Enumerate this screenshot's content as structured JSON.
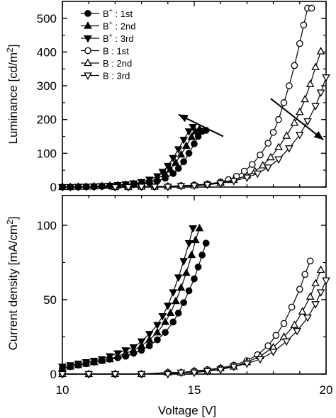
{
  "chart_data": [
    {
      "type": "line",
      "panel": "top",
      "ylabel": "Luminance [cd/m²]",
      "ylabel_parts": {
        "base": "Luminance [cd/m",
        "sup": "2",
        "close": "]"
      },
      "xlim": [
        10,
        20
      ],
      "ylim": [
        0,
        550
      ],
      "xticks": [
        10,
        15,
        20
      ],
      "yticks": [
        0,
        100,
        200,
        300,
        400,
        500
      ],
      "legend": {
        "placement": "top-left",
        "entries": [
          {
            "label": "B⁺ : 1st",
            "parts": [
              "B",
              "+",
              " : 1st"
            ],
            "marker": "circle",
            "filled": true
          },
          {
            "label": "B⁺ : 2nd",
            "parts": [
              "B",
              "+",
              " : 2nd"
            ],
            "marker": "triangle-up",
            "filled": true
          },
          {
            "label": "B⁺ : 3rd",
            "parts": [
              "B",
              "+",
              " : 3rd"
            ],
            "marker": "triangle-down",
            "filled": true
          },
          {
            "label": "B  : 1st",
            "parts": [
              "B",
              "",
              "  : 1st"
            ],
            "marker": "circle",
            "filled": false
          },
          {
            "label": "B  : 2nd",
            "parts": [
              "B",
              "",
              "  : 2nd"
            ],
            "marker": "triangle-up",
            "filled": false
          },
          {
            "label": "B  : 3rd",
            "parts": [
              "B",
              "",
              "  : 3rd"
            ],
            "marker": "triangle-down",
            "filled": false
          }
        ]
      },
      "arrows": [
        {
          "from": [
            16.1,
            150
          ],
          "to": [
            14.4,
            215
          ]
        },
        {
          "from": [
            17.9,
            262
          ],
          "to": [
            19.9,
            140
          ]
        }
      ],
      "series": [
        {
          "name": "B⁺ : 1st",
          "marker": "circle",
          "filled": true,
          "x": [
            10.0,
            10.3,
            10.6,
            10.9,
            11.2,
            11.5,
            11.8,
            12.1,
            12.4,
            12.7,
            13.0,
            13.3,
            13.6,
            13.9,
            14.2,
            14.4,
            14.6,
            14.8,
            15.0,
            15.15,
            15.3,
            15.45
          ],
          "y": [
            0,
            0,
            0,
            1,
            1,
            2,
            3,
            4,
            5,
            7,
            9,
            13,
            18,
            26,
            40,
            55,
            75,
            100,
            128,
            150,
            165,
            168
          ]
        },
        {
          "name": "B⁺ : 2nd",
          "marker": "triangle-up",
          "filled": true,
          "x": [
            10.0,
            10.3,
            10.6,
            10.9,
            11.2,
            11.5,
            11.8,
            12.1,
            12.4,
            12.7,
            13.0,
            13.3,
            13.6,
            13.9,
            14.1,
            14.3,
            14.5,
            14.7,
            14.9,
            15.05,
            15.2
          ],
          "y": [
            0,
            0,
            1,
            1,
            2,
            3,
            4,
            5,
            7,
            9,
            12,
            17,
            25,
            38,
            52,
            72,
            96,
            122,
            148,
            165,
            172
          ]
        },
        {
          "name": "B⁺ : 3rd",
          "marker": "triangle-down",
          "filled": true,
          "x": [
            10.0,
            10.3,
            10.6,
            10.9,
            11.2,
            11.5,
            11.8,
            12.1,
            12.4,
            12.7,
            13.0,
            13.3,
            13.6,
            13.8,
            14.0,
            14.2,
            14.4,
            14.6,
            14.8,
            14.95
          ],
          "y": [
            0,
            0,
            1,
            1,
            2,
            3,
            4,
            6,
            8,
            11,
            15,
            22,
            32,
            45,
            63,
            86,
            112,
            140,
            165,
            178
          ]
        },
        {
          "name": "B  : 1st",
          "marker": "circle",
          "filled": false,
          "x": [
            12.0,
            12.5,
            13.0,
            13.5,
            14.0,
            14.5,
            15.0,
            15.5,
            16.0,
            16.3,
            16.6,
            16.9,
            17.2,
            17.5,
            17.8,
            18.0,
            18.2,
            18.4,
            18.6,
            18.8,
            19.0,
            19.15,
            19.3,
            19.45
          ],
          "y": [
            0,
            0,
            1,
            1,
            2,
            4,
            6,
            9,
            15,
            22,
            32,
            47,
            67,
            95,
            130,
            162,
            200,
            250,
            300,
            360,
            425,
            480,
            530,
            530
          ]
        },
        {
          "name": "B  : 2nd",
          "marker": "triangle-up",
          "filled": false,
          "x": [
            12.0,
            12.5,
            13.0,
            13.5,
            14.0,
            14.5,
            15.0,
            15.5,
            16.0,
            16.5,
            17.0,
            17.3,
            17.6,
            17.9,
            18.2,
            18.5,
            18.8,
            19.0,
            19.2,
            19.4,
            19.6,
            19.8
          ],
          "y": [
            0,
            0,
            1,
            1,
            2,
            3,
            5,
            8,
            13,
            21,
            34,
            47,
            64,
            88,
            118,
            152,
            190,
            222,
            260,
            305,
            355,
            402
          ]
        },
        {
          "name": "B  : 3rd",
          "marker": "triangle-down",
          "filled": false,
          "x": [
            12.0,
            12.5,
            13.0,
            13.5,
            14.0,
            14.5,
            15.0,
            15.5,
            16.0,
            16.5,
            17.0,
            17.4,
            17.8,
            18.2,
            18.6,
            19.0,
            19.3,
            19.6,
            19.8,
            20.0
          ],
          "y": [
            0,
            0,
            1,
            1,
            1,
            3,
            4,
            7,
            11,
            18,
            28,
            40,
            58,
            82,
            115,
            155,
            195,
            240,
            280,
            325
          ]
        }
      ]
    },
    {
      "type": "line",
      "panel": "bottom",
      "ylabel": "Current density [mA/cm²]",
      "ylabel_parts": {
        "base": "Current density [mA/cm",
        "sup": "2",
        "close": "]"
      },
      "xlabel": "Voltage [V]",
      "xlim": [
        10,
        20
      ],
      "ylim": [
        0,
        120
      ],
      "xticks": [
        10,
        15,
        20
      ],
      "yticks": [
        0,
        50,
        100
      ],
      "series": [
        {
          "name": "B⁺ : 1st",
          "marker": "circle",
          "filled": true,
          "x": [
            10.0,
            10.3,
            10.6,
            10.9,
            11.2,
            11.5,
            11.8,
            12.1,
            12.4,
            12.7,
            13.0,
            13.3,
            13.6,
            13.9,
            14.2,
            14.4,
            14.6,
            14.8,
            15.0,
            15.15,
            15.3,
            15.45
          ],
          "y": [
            4,
            5,
            6,
            7,
            8,
            9,
            10,
            11,
            12,
            14,
            16,
            19,
            23,
            28,
            35,
            41,
            48,
            56,
            64,
            72,
            80,
            88
          ]
        },
        {
          "name": "B⁺ : 2nd",
          "marker": "triangle-up",
          "filled": true,
          "x": [
            10.0,
            10.3,
            10.6,
            10.9,
            11.2,
            11.5,
            11.8,
            12.1,
            12.4,
            12.7,
            13.0,
            13.3,
            13.6,
            13.9,
            14.1,
            14.3,
            14.5,
            14.7,
            14.9,
            15.05,
            15.2
          ],
          "y": [
            4,
            5,
            6,
            7,
            8,
            9,
            10,
            12,
            14,
            16,
            19,
            23,
            28,
            35,
            41,
            49,
            58,
            68,
            80,
            90,
            98
          ]
        },
        {
          "name": "B⁺ : 3rd",
          "marker": "triangle-down",
          "filled": true,
          "x": [
            10.0,
            10.3,
            10.6,
            10.9,
            11.2,
            11.5,
            11.8,
            12.1,
            12.4,
            12.7,
            13.0,
            13.3,
            13.6,
            13.8,
            14.0,
            14.2,
            14.4,
            14.6,
            14.8,
            14.95
          ],
          "y": [
            5,
            6,
            7,
            8,
            9,
            10,
            12,
            14,
            16,
            18,
            22,
            27,
            33,
            39,
            46,
            55,
            65,
            76,
            88,
            98
          ]
        },
        {
          "name": "B  : 1st",
          "marker": "circle",
          "filled": false,
          "x": [
            10.0,
            11.0,
            12.0,
            13.0,
            14.0,
            14.5,
            15.0,
            15.5,
            16.0,
            16.5,
            17.0,
            17.4,
            17.8,
            18.1,
            18.4,
            18.7,
            19.0,
            19.2,
            19.4
          ],
          "y": [
            0,
            0,
            0,
            0,
            1,
            1,
            2,
            3,
            4,
            6,
            9,
            13,
            19,
            26,
            34,
            45,
            57,
            67,
            76
          ]
        },
        {
          "name": "B  : 2nd",
          "marker": "triangle-up",
          "filled": false,
          "x": [
            10.0,
            11.0,
            12.0,
            13.0,
            14.0,
            14.5,
            15.0,
            15.5,
            16.0,
            16.5,
            17.0,
            17.5,
            18.0,
            18.4,
            18.8,
            19.1,
            19.4,
            19.6,
            19.8
          ],
          "y": [
            0,
            0,
            0,
            0,
            1,
            1,
            2,
            2,
            4,
            5,
            8,
            12,
            18,
            25,
            33,
            42,
            52,
            61,
            70
          ]
        },
        {
          "name": "B  : 3rd",
          "marker": "triangle-down",
          "filled": false,
          "x": [
            10.0,
            11.0,
            12.0,
            13.0,
            14.0,
            14.5,
            15.0,
            15.5,
            16.0,
            16.5,
            17.0,
            17.5,
            18.0,
            18.5,
            18.9,
            19.3,
            19.6,
            19.8,
            20.0
          ],
          "y": [
            0,
            0,
            0,
            0,
            0,
            1,
            1,
            2,
            3,
            5,
            7,
            10,
            15,
            22,
            29,
            38,
            47,
            55,
            63
          ]
        }
      ]
    }
  ]
}
